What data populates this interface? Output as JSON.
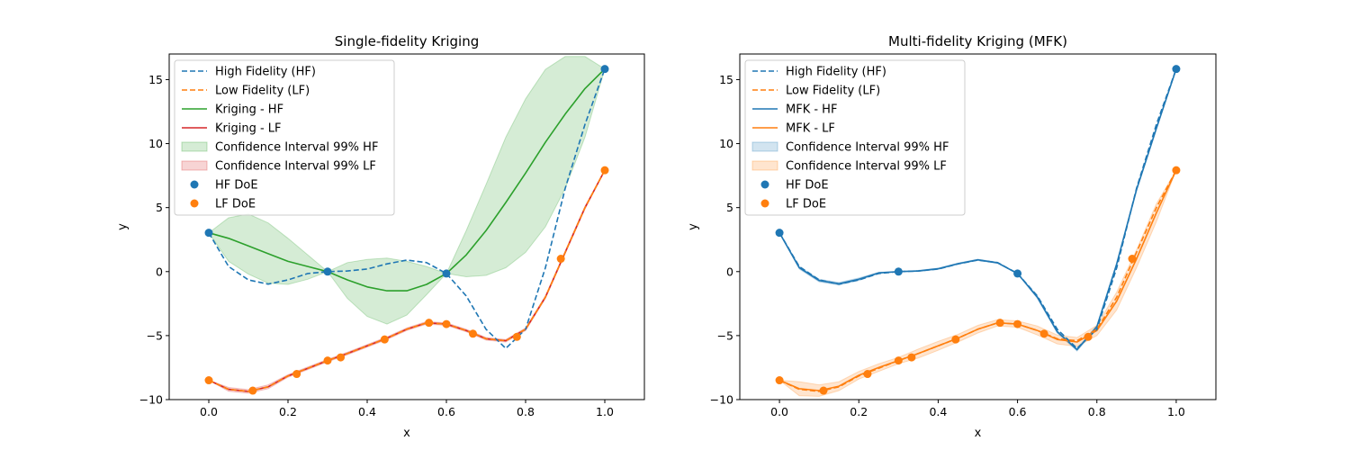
{
  "chart_data": [
    {
      "type": "line",
      "title": "Single-fidelity Kriging",
      "xlabel": "x",
      "ylabel": "y",
      "xlim": [
        -0.1,
        1.1
      ],
      "ylim": [
        -10,
        17
      ],
      "xticks": [
        0.0,
        0.2,
        0.4,
        0.6,
        0.8,
        1.0
      ],
      "yticks": [
        -10,
        -5,
        0,
        5,
        10,
        15
      ],
      "xtick_labels": [
        "0.0",
        "0.2",
        "0.4",
        "0.6",
        "0.8",
        "1.0"
      ],
      "ytick_labels": [
        "−10",
        "−5",
        "0",
        "5",
        "10",
        "15"
      ],
      "grid": false,
      "legend_position": "top-left",
      "series": [
        {
          "name": "High Fidelity (HF)",
          "kind": "line",
          "style": "dashed",
          "color": "#1f77b4",
          "x": [
            0,
            0.05,
            0.1,
            0.15,
            0.2,
            0.25,
            0.3,
            0.35,
            0.4,
            0.45,
            0.5,
            0.55,
            0.6,
            0.65,
            0.7,
            0.75,
            0.8,
            0.85,
            0.9,
            0.95,
            1.0
          ],
          "y": [
            3.03,
            0.4,
            -0.65,
            -0.98,
            -0.65,
            -0.15,
            0.0,
            0.05,
            0.2,
            0.6,
            0.9,
            0.7,
            -0.15,
            -1.9,
            -4.5,
            -6.0,
            -4.5,
            0.3,
            6.5,
            11.5,
            15.83
          ]
        },
        {
          "name": "Low Fidelity (LF)",
          "kind": "line",
          "style": "dashed",
          "color": "#ff7f0e",
          "x": [
            0,
            0.05,
            0.1,
            0.15,
            0.2,
            0.25,
            0.3,
            0.35,
            0.4,
            0.45,
            0.5,
            0.55,
            0.6,
            0.65,
            0.7,
            0.75,
            0.8,
            0.85,
            0.9,
            0.95,
            1.0
          ],
          "y": [
            -8.49,
            -9.2,
            -9.36,
            -9.0,
            -8.15,
            -7.55,
            -6.95,
            -6.4,
            -5.8,
            -5.2,
            -4.5,
            -4.0,
            -4.1,
            -4.6,
            -5.25,
            -5.4,
            -4.5,
            -2.0,
            1.5,
            5.0,
            7.92
          ]
        },
        {
          "name": "Kriging - HF",
          "kind": "line",
          "style": "solid",
          "color": "#2ca02c",
          "x": [
            0,
            0.05,
            0.1,
            0.15,
            0.2,
            0.25,
            0.3,
            0.35,
            0.4,
            0.45,
            0.5,
            0.55,
            0.6,
            0.65,
            0.7,
            0.75,
            0.8,
            0.85,
            0.9,
            0.95,
            1.0
          ],
          "y": [
            3.03,
            2.6,
            2.0,
            1.4,
            0.8,
            0.4,
            0.0,
            -0.65,
            -1.2,
            -1.5,
            -1.5,
            -1.0,
            -0.15,
            1.3,
            3.2,
            5.4,
            7.7,
            10.1,
            12.3,
            14.3,
            15.83
          ]
        },
        {
          "name": "Kriging - LF",
          "kind": "line",
          "style": "solid",
          "color": "#d62728",
          "x": [
            0,
            0.05,
            0.1,
            0.15,
            0.2,
            0.25,
            0.3,
            0.35,
            0.4,
            0.45,
            0.5,
            0.55,
            0.6,
            0.65,
            0.7,
            0.75,
            0.8,
            0.85,
            0.9,
            0.95,
            1.0
          ],
          "y": [
            -8.49,
            -9.2,
            -9.36,
            -9.0,
            -8.15,
            -7.55,
            -6.95,
            -6.4,
            -5.8,
            -5.2,
            -4.5,
            -4.0,
            -4.1,
            -4.6,
            -5.25,
            -5.4,
            -4.5,
            -2.0,
            1.5,
            5.0,
            7.92
          ]
        },
        {
          "name": "Confidence Interval 99% HF",
          "kind": "band",
          "color": "#2ca02c",
          "opacity": 0.2,
          "x": [
            0,
            0.05,
            0.1,
            0.15,
            0.2,
            0.25,
            0.3,
            0.35,
            0.4,
            0.45,
            0.5,
            0.55,
            0.6,
            0.65,
            0.7,
            0.75,
            0.8,
            0.85,
            0.9,
            0.95,
            1.0
          ],
          "lower": [
            3.03,
            0.8,
            -0.2,
            -0.9,
            -1.0,
            -0.6,
            0.0,
            -2.1,
            -3.5,
            -4.1,
            -3.4,
            -1.8,
            -0.15,
            -0.4,
            -0.3,
            0.3,
            1.5,
            3.5,
            6.5,
            10.5,
            15.83
          ],
          "upper": [
            3.03,
            4.2,
            4.5,
            3.8,
            2.6,
            1.3,
            0.0,
            0.7,
            0.95,
            1.05,
            0.8,
            0.4,
            -0.15,
            3.2,
            6.8,
            10.5,
            13.5,
            15.8,
            16.8,
            16.8,
            15.83
          ]
        },
        {
          "name": "Confidence Interval 99% LF",
          "kind": "band",
          "color": "#d62728",
          "opacity": 0.2,
          "x": [
            0,
            0.05,
            0.1,
            0.15,
            0.2,
            0.25,
            0.3,
            0.35,
            0.4,
            0.45,
            0.5,
            0.55,
            0.6,
            0.65,
            0.7,
            0.75,
            0.8,
            0.85,
            0.9,
            0.95,
            1.0
          ],
          "lower": [
            -8.49,
            -9.35,
            -9.5,
            -9.15,
            -8.25,
            -7.65,
            -7.05,
            -6.5,
            -5.9,
            -5.3,
            -4.6,
            -4.1,
            -4.2,
            -4.7,
            -5.35,
            -5.5,
            -4.6,
            -2.1,
            1.4,
            4.9,
            7.92
          ],
          "upper": [
            -8.49,
            -9.05,
            -9.22,
            -8.85,
            -8.05,
            -7.45,
            -6.85,
            -6.3,
            -5.7,
            -5.1,
            -4.4,
            -3.9,
            -4.0,
            -4.5,
            -5.15,
            -5.3,
            -4.4,
            -1.9,
            1.6,
            5.1,
            7.92
          ]
        },
        {
          "name": "HF DoE",
          "kind": "scatter",
          "color": "#1f77b4",
          "x": [
            0.0,
            0.3,
            0.6,
            1.0
          ],
          "y": [
            3.03,
            0.0,
            -0.15,
            15.83
          ]
        },
        {
          "name": "LF DoE",
          "kind": "scatter",
          "color": "#ff7f0e",
          "x": [
            0.0,
            0.111,
            0.222,
            0.3,
            0.333,
            0.444,
            0.556,
            0.6,
            0.667,
            0.778,
            0.889,
            1.0
          ],
          "y": [
            -8.49,
            -9.3,
            -8.0,
            -6.95,
            -6.7,
            -5.3,
            -4.0,
            -4.1,
            -4.85,
            -5.1,
            1.0,
            7.92
          ]
        }
      ]
    },
    {
      "type": "line",
      "title": "Multi-fidelity Kriging (MFK)",
      "xlabel": "x",
      "ylabel": "y",
      "xlim": [
        -0.1,
        1.1
      ],
      "ylim": [
        -10,
        17
      ],
      "xticks": [
        0.0,
        0.2,
        0.4,
        0.6,
        0.8,
        1.0
      ],
      "yticks": [
        -10,
        -5,
        0,
        5,
        10,
        15
      ],
      "xtick_labels": [
        "0.0",
        "0.2",
        "0.4",
        "0.6",
        "0.8",
        "1.0"
      ],
      "ytick_labels": [
        "−10",
        "−5",
        "0",
        "5",
        "10",
        "15"
      ],
      "grid": false,
      "legend_position": "top-left",
      "series": [
        {
          "name": "High Fidelity (HF)",
          "kind": "line",
          "style": "dashed",
          "color": "#1f77b4",
          "x": [
            0,
            0.05,
            0.1,
            0.15,
            0.2,
            0.25,
            0.3,
            0.35,
            0.4,
            0.45,
            0.5,
            0.55,
            0.6,
            0.65,
            0.7,
            0.75,
            0.8,
            0.85,
            0.9,
            0.95,
            1.0
          ],
          "y": [
            3.03,
            0.4,
            -0.65,
            -0.98,
            -0.65,
            -0.15,
            0.0,
            0.05,
            0.2,
            0.6,
            0.9,
            0.7,
            -0.15,
            -1.9,
            -4.5,
            -6.0,
            -4.5,
            0.3,
            6.5,
            11.5,
            15.83
          ]
        },
        {
          "name": "Low Fidelity (LF)",
          "kind": "line",
          "style": "dashed",
          "color": "#ff7f0e",
          "x": [
            0,
            0.05,
            0.1,
            0.15,
            0.2,
            0.25,
            0.3,
            0.35,
            0.4,
            0.45,
            0.5,
            0.55,
            0.6,
            0.65,
            0.7,
            0.75,
            0.8,
            0.85,
            0.9,
            0.95,
            1.0
          ],
          "y": [
            -8.49,
            -9.2,
            -9.36,
            -9.0,
            -8.15,
            -7.55,
            -6.95,
            -6.4,
            -5.8,
            -5.2,
            -4.5,
            -4.0,
            -4.1,
            -4.6,
            -5.25,
            -5.4,
            -4.5,
            -2.0,
            1.5,
            5.0,
            7.92
          ]
        },
        {
          "name": "MFK - HF",
          "kind": "line",
          "style": "solid",
          "color": "#1f77b4",
          "x": [
            0,
            0.05,
            0.1,
            0.15,
            0.2,
            0.25,
            0.3,
            0.35,
            0.4,
            0.45,
            0.5,
            0.55,
            0.6,
            0.65,
            0.7,
            0.75,
            0.8,
            0.85,
            0.9,
            0.95,
            1.0
          ],
          "y": [
            3.03,
            0.3,
            -0.7,
            -0.95,
            -0.6,
            -0.1,
            0.0,
            0.05,
            0.22,
            0.62,
            0.92,
            0.68,
            -0.15,
            -2.0,
            -4.7,
            -6.1,
            -4.3,
            0.6,
            6.4,
            11.2,
            15.83
          ]
        },
        {
          "name": "MFK - LF",
          "kind": "line",
          "style": "solid",
          "color": "#ff7f0e",
          "x": [
            0,
            0.05,
            0.1,
            0.15,
            0.2,
            0.25,
            0.3,
            0.35,
            0.4,
            0.45,
            0.5,
            0.55,
            0.6,
            0.65,
            0.7,
            0.75,
            0.8,
            0.85,
            0.9,
            0.95,
            1.0
          ],
          "y": [
            -8.49,
            -9.15,
            -9.3,
            -8.95,
            -8.1,
            -7.5,
            -6.95,
            -6.4,
            -5.8,
            -5.2,
            -4.5,
            -4.0,
            -4.1,
            -4.6,
            -5.3,
            -5.5,
            -4.6,
            -2.3,
            1.0,
            4.6,
            7.92
          ]
        },
        {
          "name": "Confidence Interval 99% HF",
          "kind": "band",
          "color": "#1f77b4",
          "opacity": 0.2,
          "x": [
            0,
            0.05,
            0.1,
            0.15,
            0.2,
            0.25,
            0.3,
            0.35,
            0.4,
            0.45,
            0.5,
            0.55,
            0.6,
            0.65,
            0.7,
            0.75,
            0.8,
            0.85,
            0.9,
            0.95,
            1.0
          ],
          "lower": [
            3.03,
            0.2,
            -0.8,
            -1.05,
            -0.7,
            -0.15,
            0.0,
            0.0,
            0.17,
            0.57,
            0.87,
            0.63,
            -0.15,
            -2.1,
            -4.8,
            -6.2,
            -4.4,
            0.5,
            6.3,
            11.1,
            15.83
          ],
          "upper": [
            3.03,
            0.4,
            -0.6,
            -0.85,
            -0.5,
            -0.05,
            0.0,
            0.1,
            0.27,
            0.67,
            0.97,
            0.73,
            -0.15,
            -1.9,
            -4.6,
            -6.0,
            -4.2,
            0.7,
            6.5,
            11.3,
            15.83
          ]
        },
        {
          "name": "Confidence Interval 99% LF",
          "kind": "band",
          "color": "#ff7f0e",
          "opacity": 0.2,
          "x": [
            0,
            0.05,
            0.1,
            0.15,
            0.2,
            0.25,
            0.3,
            0.35,
            0.4,
            0.45,
            0.5,
            0.55,
            0.6,
            0.65,
            0.7,
            0.75,
            0.8,
            0.85,
            0.9,
            0.95,
            1.0
          ],
          "lower": [
            -8.49,
            -9.7,
            -9.75,
            -9.3,
            -8.4,
            -7.8,
            -7.2,
            -6.75,
            -6.15,
            -5.5,
            -4.8,
            -4.25,
            -4.35,
            -4.95,
            -5.65,
            -5.85,
            -5.0,
            -3.0,
            0.3,
            3.9,
            7.92
          ],
          "upper": [
            -8.49,
            -8.6,
            -8.85,
            -8.6,
            -7.8,
            -7.2,
            -6.7,
            -6.05,
            -5.45,
            -4.9,
            -4.2,
            -3.75,
            -3.85,
            -4.25,
            -4.95,
            -5.15,
            -4.2,
            -1.6,
            1.7,
            5.3,
            7.92
          ]
        },
        {
          "name": "HF DoE",
          "kind": "scatter",
          "color": "#1f77b4",
          "x": [
            0.0,
            0.3,
            0.6,
            1.0
          ],
          "y": [
            3.03,
            0.0,
            -0.15,
            15.83
          ]
        },
        {
          "name": "LF DoE",
          "kind": "scatter",
          "color": "#ff7f0e",
          "x": [
            0.0,
            0.111,
            0.222,
            0.3,
            0.333,
            0.444,
            0.556,
            0.6,
            0.667,
            0.778,
            0.889,
            1.0
          ],
          "y": [
            -8.49,
            -9.3,
            -8.0,
            -6.95,
            -6.7,
            -5.3,
            -4.0,
            -4.1,
            -4.85,
            -5.1,
            1.0,
            7.92
          ]
        }
      ]
    }
  ]
}
